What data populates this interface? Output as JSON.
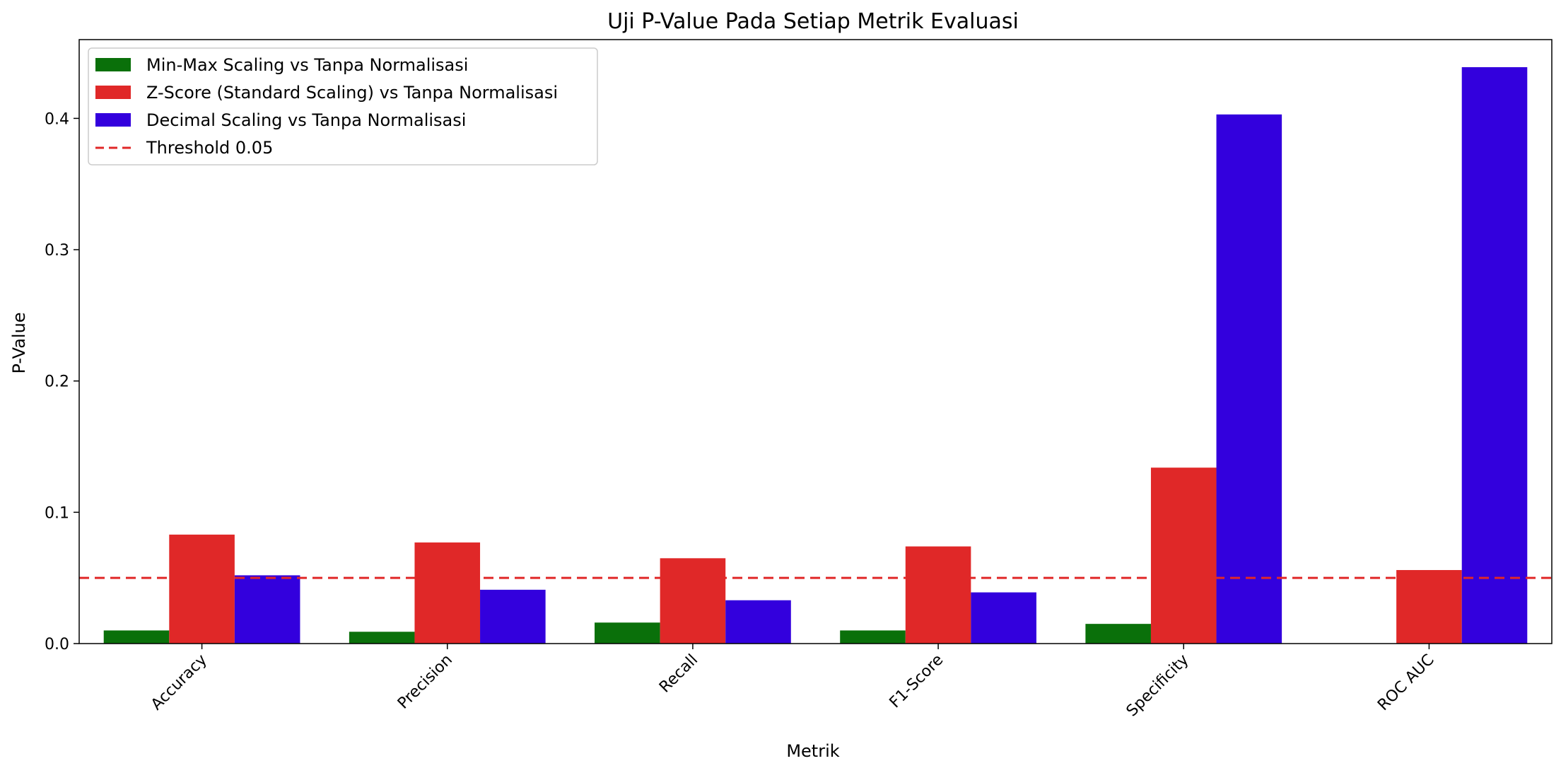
{
  "chart_data": {
    "type": "bar",
    "title": "Uji P-Value Pada Setiap Metrik Evaluasi",
    "xlabel": "Metrik",
    "ylabel": "P-Value",
    "categories": [
      "Accuracy",
      "Precision",
      "Recall",
      "F1-Score",
      "Specificity",
      "ROC AUC"
    ],
    "ylim": [
      0,
      0.46
    ],
    "yticks": [
      "0.0",
      "0.1",
      "0.2",
      "0.3",
      "0.4"
    ],
    "series": [
      {
        "name": "Min-Max Scaling vs Tanpa Normalisasi",
        "color": "#0a700a",
        "values": [
          0.01,
          0.009,
          0.016,
          0.01,
          0.015,
          0.0
        ]
      },
      {
        "name": "Z-Score (Standard Scaling) vs Tanpa Normalisasi",
        "color": "#e02828",
        "values": [
          0.083,
          0.077,
          0.065,
          0.074,
          0.134,
          0.056
        ]
      },
      {
        "name": "Decimal Scaling vs Tanpa Normalisasi",
        "color": "#3300dd",
        "values": [
          0.052,
          0.041,
          0.033,
          0.039,
          0.403,
          0.439
        ]
      }
    ],
    "threshold": {
      "label": "Threshold 0.05",
      "value": 0.05,
      "color": "#e02828"
    },
    "legend_position": "top-left",
    "grid": false
  }
}
